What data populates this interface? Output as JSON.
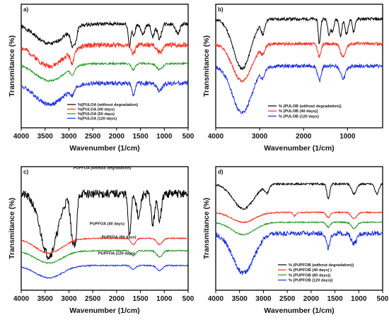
{
  "chart_data": [
    {
      "panel": "a)",
      "type": "line",
      "xlabel": "Wavenumber (1/cm)",
      "ylabel": "Transmitance (%)",
      "xlim": [
        4000,
        500
      ],
      "xticks": [
        4000,
        3500,
        3000,
        2500,
        2000,
        1500,
        1000,
        500
      ],
      "legend_position": "bottom-right",
      "series": [
        {
          "name": "%(PULOA (without degradation)",
          "color": "#000000",
          "offset": 0.84,
          "peaks": [
            [
              3400,
              0.16,
              300
            ],
            [
              2925,
              0.13,
              40
            ],
            [
              2855,
              0.09,
              30
            ],
            [
              1730,
              0.18,
              25
            ],
            [
              1640,
              0.1,
              30
            ],
            [
              1450,
              0.09,
              40
            ],
            [
              1240,
              0.1,
              35
            ],
            [
              1100,
              0.12,
              40
            ],
            [
              720,
              0.08,
              40
            ]
          ],
          "noise": 0.03
        },
        {
          "name": "%(PULOA (40 days)",
          "color": "#ff2a1a",
          "offset": 0.67,
          "peaks": [
            [
              3400,
              0.17,
              300
            ],
            [
              2925,
              0.1,
              40
            ],
            [
              1650,
              0.07,
              40
            ],
            [
              1100,
              0.06,
              60
            ]
          ],
          "noise": 0.04
        },
        {
          "name": "%(PULOA (50 days)",
          "color": "#1a9a1a",
          "offset": 0.52,
          "peaks": [
            [
              3400,
              0.14,
              300
            ],
            [
              2925,
              0.05,
              40
            ],
            [
              1650,
              0.05,
              40
            ],
            [
              1100,
              0.05,
              60
            ]
          ],
          "noise": 0.015
        },
        {
          "name": "%(PULOA (120 days)",
          "color": "#1a2ee8",
          "offset": 0.36,
          "peaks": [
            [
              3400,
              0.17,
              300
            ],
            [
              2925,
              0.05,
              40
            ],
            [
              1650,
              0.1,
              30
            ],
            [
              1100,
              0.06,
              60
            ]
          ],
          "noise": 0.035
        }
      ]
    },
    {
      "panel": "b)",
      "type": "line",
      "xlabel": "Wavenumber (1/cm)",
      "ylabel": "Transmitance (%)",
      "xlim": [
        4000,
        200
      ],
      "xticks": [
        4000,
        3000,
        2000,
        1000
      ],
      "legend_position": "bottom-right",
      "series": [
        {
          "name": "% (PULOB (without degradation))",
          "color": "#000000",
          "offset": 0.88,
          "peaks": [
            [
              3400,
              0.4,
              200
            ],
            [
              2925,
              0.1,
              40
            ],
            [
              1640,
              0.2,
              25
            ],
            [
              1420,
              0.12,
              30
            ],
            [
              1340,
              0.1,
              30
            ],
            [
              1160,
              0.14,
              30
            ],
            [
              1020,
              0.12,
              35
            ],
            [
              860,
              0.1,
              30
            ]
          ],
          "noise": 0.025
        },
        {
          "name": "% (PULOB (40 days))",
          "color": "#ff2a1a",
          "offset": 0.68,
          "peaks": [
            [
              3400,
              0.3,
              220
            ],
            [
              2925,
              0.06,
              40
            ],
            [
              1640,
              0.1,
              40
            ],
            [
              1100,
              0.1,
              60
            ]
          ],
          "noise": 0.025
        },
        {
          "name": "% (PULOB (120 days)",
          "color": "#1a2ee8",
          "offset": 0.5,
          "peaks": [
            [
              3400,
              0.38,
              220
            ],
            [
              2925,
              0.06,
              40
            ],
            [
              1640,
              0.12,
              40
            ],
            [
              1100,
              0.1,
              60
            ]
          ],
          "noise": 0.03
        }
      ]
    },
    {
      "panel": "c)",
      "type": "line",
      "xlabel": "Wavenumber (1/cm)",
      "ylabel": "Transmitance (%)",
      "xlim": [
        4000,
        500
      ],
      "xticks": [
        4000,
        3500,
        3000,
        2500,
        2000,
        1500,
        1000,
        500
      ],
      "annotations": [
        "PUPFOA (without degradation)",
        "PUPFOA (40 days)",
        "PUPFOA (80 days)",
        "PUPFOA (120 days)"
      ],
      "series": [
        {
          "name": "PUPFOA (without degradation)",
          "color": "#000000",
          "offset": 0.78,
          "peaks": [
            [
              3420,
              0.5,
              180
            ],
            [
              2925,
              0.35,
              40
            ],
            [
              2855,
              0.3,
              30
            ],
            [
              1730,
              0.35,
              30
            ],
            [
              1540,
              0.2,
              40
            ],
            [
              1240,
              0.25,
              35
            ],
            [
              1100,
              0.2,
              40
            ]
          ],
          "noise": 0.07
        },
        {
          "name": "PUPFOA (40 days)",
          "color": "#ff2a1a",
          "offset": 0.42,
          "peaks": [
            [
              3420,
              0.12,
              280
            ],
            [
              1650,
              0.05,
              50
            ],
            [
              1100,
              0.05,
              60
            ]
          ],
          "noise": 0.01
        },
        {
          "name": "PUPFOA (80 days)",
          "color": "#1a9a1a",
          "offset": 0.32,
          "peaks": [
            [
              3420,
              0.1,
              280
            ],
            [
              1650,
              0.04,
              50
            ],
            [
              1100,
              0.05,
              60
            ]
          ],
          "noise": 0.01
        },
        {
          "name": "PUPFOA (120 days)",
          "color": "#1a2ee8",
          "offset": 0.2,
          "peaks": [
            [
              3420,
              0.1,
              280
            ],
            [
              1650,
              0.03,
              50
            ],
            [
              1100,
              0.04,
              60
            ]
          ],
          "noise": 0.01
        }
      ]
    },
    {
      "panel": "d)",
      "type": "line",
      "xlabel": "Wavenumber (1/cm)",
      "ylabel": "Transmitance (%)",
      "xlim": [
        4000,
        500
      ],
      "xticks": [
        4000,
        3500,
        3000,
        2500,
        2000,
        1500,
        1000,
        500
      ],
      "legend_position": "bottom-right",
      "series": [
        {
          "name": "% (PUPFOB (without degradation))",
          "color": "#000000",
          "offset": 0.86,
          "peaks": [
            [
              3420,
              0.2,
              220
            ],
            [
              2925,
              0.06,
              40
            ],
            [
              1640,
              0.12,
              30
            ],
            [
              1100,
              0.08,
              50
            ],
            [
              620,
              0.08,
              40
            ]
          ],
          "noise": 0.015
        },
        {
          "name": "% (PUPFOB (40 days) )",
          "color": "#ff2a1a",
          "offset": 0.63,
          "peaks": [
            [
              3420,
              0.08,
              240
            ],
            [
              2350,
              0.03,
              30
            ],
            [
              1640,
              0.04,
              40
            ],
            [
              1100,
              0.05,
              60
            ]
          ],
          "noise": 0.01
        },
        {
          "name": "% (PUPFOB (80 days))",
          "color": "#1a9a1a",
          "offset": 0.55,
          "peaks": [
            [
              3420,
              0.1,
              240
            ],
            [
              1640,
              0.04,
              40
            ],
            [
              1100,
              0.05,
              60
            ]
          ],
          "noise": 0.01
        },
        {
          "name": "% (PUPFOB (120 days))",
          "color": "#1a2ee8",
          "offset": 0.46,
          "peaks": [
            [
              3420,
              0.32,
              220
            ],
            [
              1640,
              0.12,
              40
            ],
            [
              1100,
              0.08,
              60
            ]
          ],
          "noise": 0.04
        }
      ]
    }
  ]
}
